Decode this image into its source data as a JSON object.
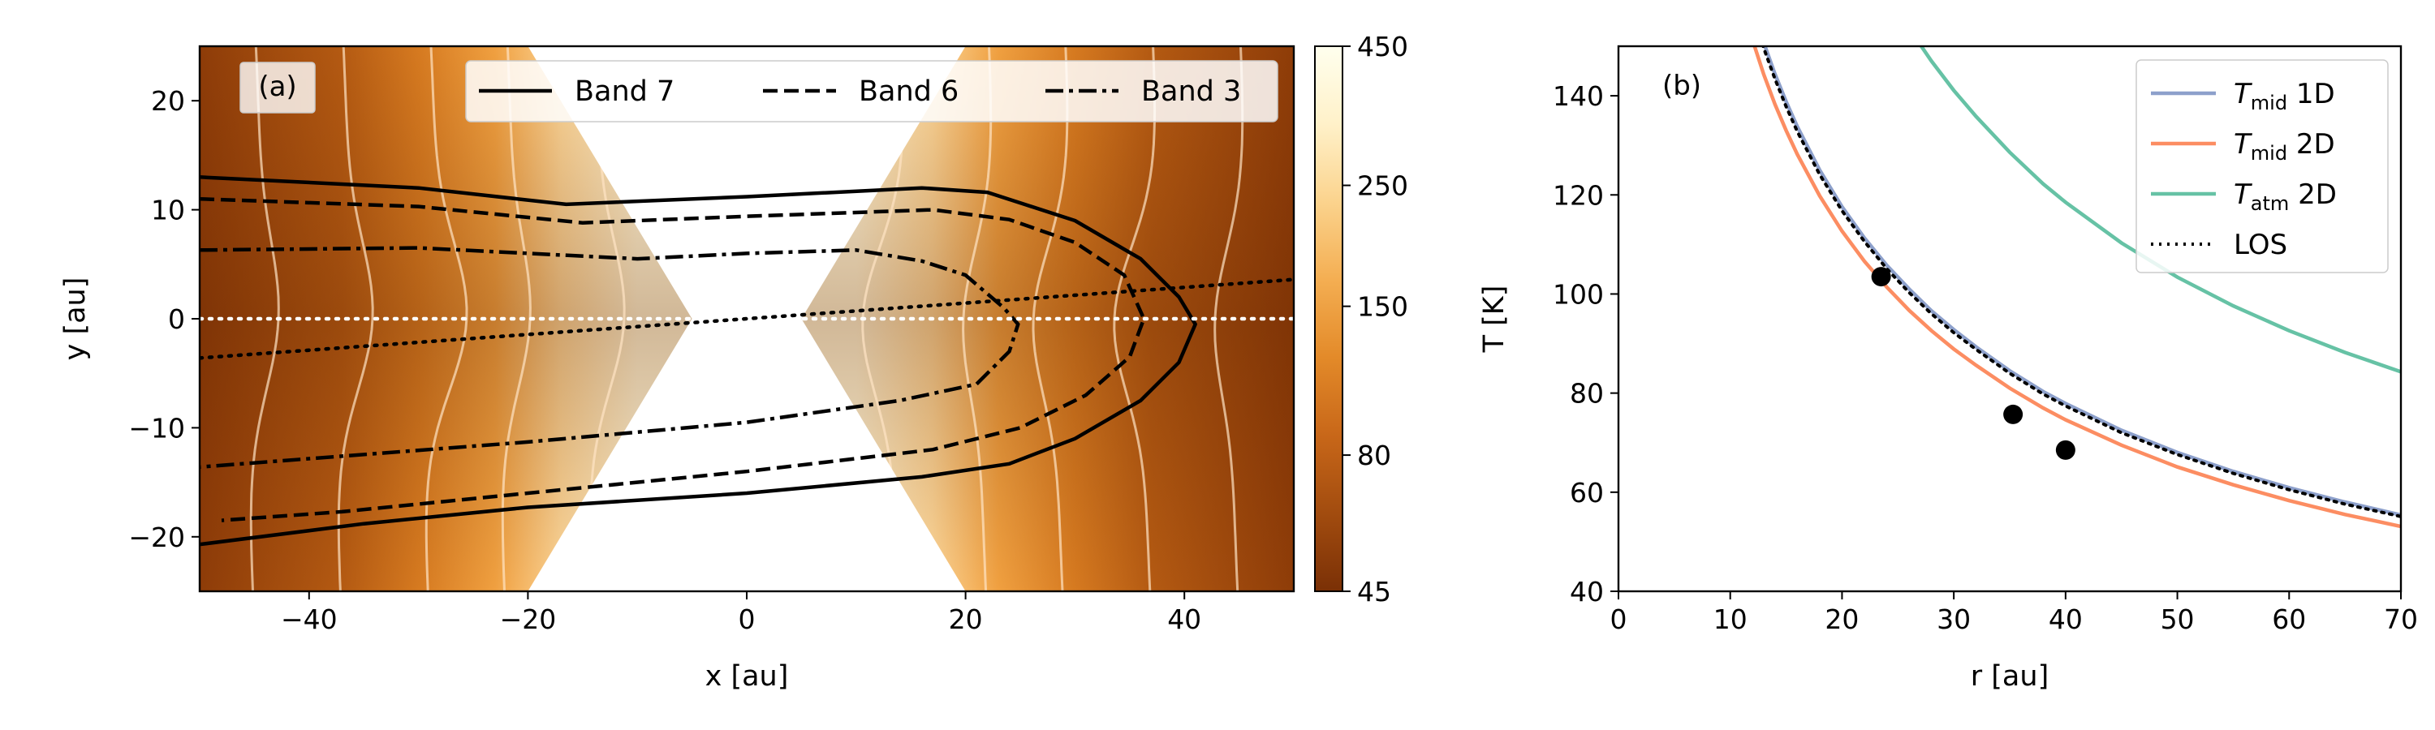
{
  "chart_data": [
    {
      "type": "heatmap",
      "panel_label": "(a)",
      "xlabel": "x [au]",
      "ylabel": "y [au]",
      "xlim": [
        -50,
        50
      ],
      "ylim": [
        -25,
        25
      ],
      "xticks": [
        -40,
        -20,
        0,
        20,
        40
      ],
      "yticks": [
        -20,
        -10,
        0,
        10,
        20
      ],
      "colorbar": {
        "scale": "log",
        "range": [
          45,
          450
        ],
        "ticks": [
          45,
          80,
          150,
          250,
          450
        ],
        "colors": [
          "#7a3006",
          "#a24c0f",
          "#c86719",
          "#e38a29",
          "#f4ae52",
          "#fbd38d",
          "#fff1c9",
          "#ffffee"
        ]
      },
      "legend_position": "top",
      "series": [
        {
          "name": "Band 7",
          "style": "solid",
          "color": "#000000",
          "points": [
            [
              -50,
              13.0
            ],
            [
              -30,
              12.0
            ],
            [
              -16.5,
              10.5
            ],
            [
              0,
              11.2
            ],
            [
              16,
              12.0
            ],
            [
              22,
              11.6
            ],
            [
              30,
              9.0
            ],
            [
              36,
              5.5
            ],
            [
              39.5,
              2.0
            ],
            [
              41,
              -0.5
            ],
            [
              39.5,
              -4.0
            ],
            [
              36,
              -7.5
            ],
            [
              30,
              -11.0
            ],
            [
              24,
              -13.3
            ],
            [
              16,
              -14.5
            ],
            [
              0,
              -16.0
            ],
            [
              -20,
              -17.3
            ],
            [
              -35,
              -18.8
            ],
            [
              -50,
              -20.7
            ]
          ]
        },
        {
          "name": "Band 6",
          "style": "dashed",
          "color": "#000000",
          "points": [
            [
              -50,
              11.0
            ],
            [
              -30,
              10.3
            ],
            [
              -15,
              8.8
            ],
            [
              0,
              9.4
            ],
            [
              17,
              10.0
            ],
            [
              24,
              9.1
            ],
            [
              30,
              7.0
            ],
            [
              34.5,
              4.0
            ],
            [
              36.3,
              0.0
            ],
            [
              35,
              -3.5
            ],
            [
              31,
              -7.0
            ],
            [
              25,
              -10.0
            ],
            [
              17,
              -12.0
            ],
            [
              0,
              -14.0
            ],
            [
              -20,
              -16.0
            ],
            [
              -37,
              -17.7
            ],
            [
              -48,
              -18.5
            ]
          ]
        },
        {
          "name": "Band 3",
          "style": "dashdot",
          "color": "#000000",
          "points": [
            [
              -50,
              6.3
            ],
            [
              -30,
              6.5
            ],
            [
              -10,
              5.5
            ],
            [
              0,
              6.0
            ],
            [
              10,
              6.3
            ],
            [
              16,
              5.3
            ],
            [
              20,
              4.0
            ],
            [
              23.5,
              1.0
            ],
            [
              24.8,
              -0.5
            ],
            [
              24,
              -3.0
            ],
            [
              21,
              -6.0
            ],
            [
              14,
              -7.5
            ],
            [
              0,
              -9.5
            ],
            [
              -20,
              -11.3
            ],
            [
              -50,
              -13.6
            ]
          ]
        }
      ],
      "reference_lines": [
        {
          "name": "midplane",
          "style": "dotted",
          "color": "#ffffff",
          "points": [
            [
              -50,
              0
            ],
            [
              50,
              0
            ]
          ]
        },
        {
          "name": "line of sight",
          "style": "dotted",
          "color": "#000000",
          "points": [
            [
              -50,
              -3.6
            ],
            [
              50,
              3.6
            ]
          ]
        }
      ]
    },
    {
      "type": "line",
      "panel_label": "(b)",
      "xlabel": "r [au]",
      "ylabel": "T [K]",
      "xlim": [
        0,
        70
      ],
      "ylim": [
        40,
        150
      ],
      "xticks": [
        0,
        10,
        20,
        30,
        40,
        50,
        60,
        70
      ],
      "yticks": [
        40,
        60,
        80,
        100,
        120,
        140
      ],
      "legend_position": "top-right",
      "x": [
        12,
        13,
        14,
        15,
        16,
        18,
        20,
        22,
        24,
        26,
        28,
        30,
        32,
        35,
        38,
        40,
        45,
        50,
        55,
        60,
        65,
        70
      ],
      "series": [
        {
          "name_main": "T",
          "name_sub": "mid",
          "name_tail": " 1D",
          "color": "#8da0cb",
          "style": "solid",
          "y_at": {
            "a": 1.24
          }
        },
        {
          "name_main": "T",
          "name_sub": "mid",
          "name_tail": " 2D",
          "color": "#fc8d62",
          "style": "solid",
          "y_at": {
            "a": 1.205
          }
        },
        {
          "name_main": "T",
          "name_sub": "atm",
          "name_tail": " 2D",
          "color": "#66c2a5",
          "style": "solid",
          "y_at": {
            "a": 1.57
          }
        },
        {
          "name_main": "LOS",
          "name_sub": "",
          "name_tail": "",
          "color": "#000000",
          "style": "dotted",
          "y_at": {
            "a": 1.232
          }
        }
      ],
      "values": {
        "T_mid_1D": [
          157.8,
          150.7,
          144.4,
          138.8,
          133.8,
          125.0,
          117.6,
          111.3,
          105.8,
          101.0,
          96.6,
          92.8,
          89.3,
          84.5,
          80.3,
          77.9,
          72.5,
          68.0,
          64.2,
          60.9,
          58.0,
          55.4
        ],
        "T_mid_2D": [
          151.2,
          144.3,
          138.3,
          133.0,
          128.2,
          119.8,
          112.7,
          106.6,
          101.4,
          96.7,
          92.6,
          88.9,
          85.6,
          81.0,
          77.0,
          74.6,
          69.5,
          65.1,
          61.5,
          58.3,
          55.5,
          53.1
        ],
        "T_atm_2D": [
          240.0,
          229.1,
          219.6,
          211.1,
          203.5,
          190.2,
          178.9,
          169.3,
          160.9,
          153.6,
          147.0,
          141.1,
          135.8,
          128.6,
          122.2,
          118.5,
          110.3,
          103.4,
          97.6,
          92.6,
          88.2,
          84.3
        ],
        "LOS": [
          156.7,
          149.6,
          143.4,
          137.8,
          132.8,
          124.1,
          116.8,
          110.6,
          105.1,
          100.3,
          96.0,
          92.2,
          88.8,
          84.0,
          79.8,
          77.4,
          72.0,
          67.6,
          63.8,
          60.5,
          57.6,
          55.1
        ]
      },
      "markers": [
        {
          "x": 23.5,
          "y": 103.5
        },
        {
          "x": 35.3,
          "y": 75.7
        },
        {
          "x": 40.0,
          "y": 68.5
        }
      ]
    }
  ]
}
